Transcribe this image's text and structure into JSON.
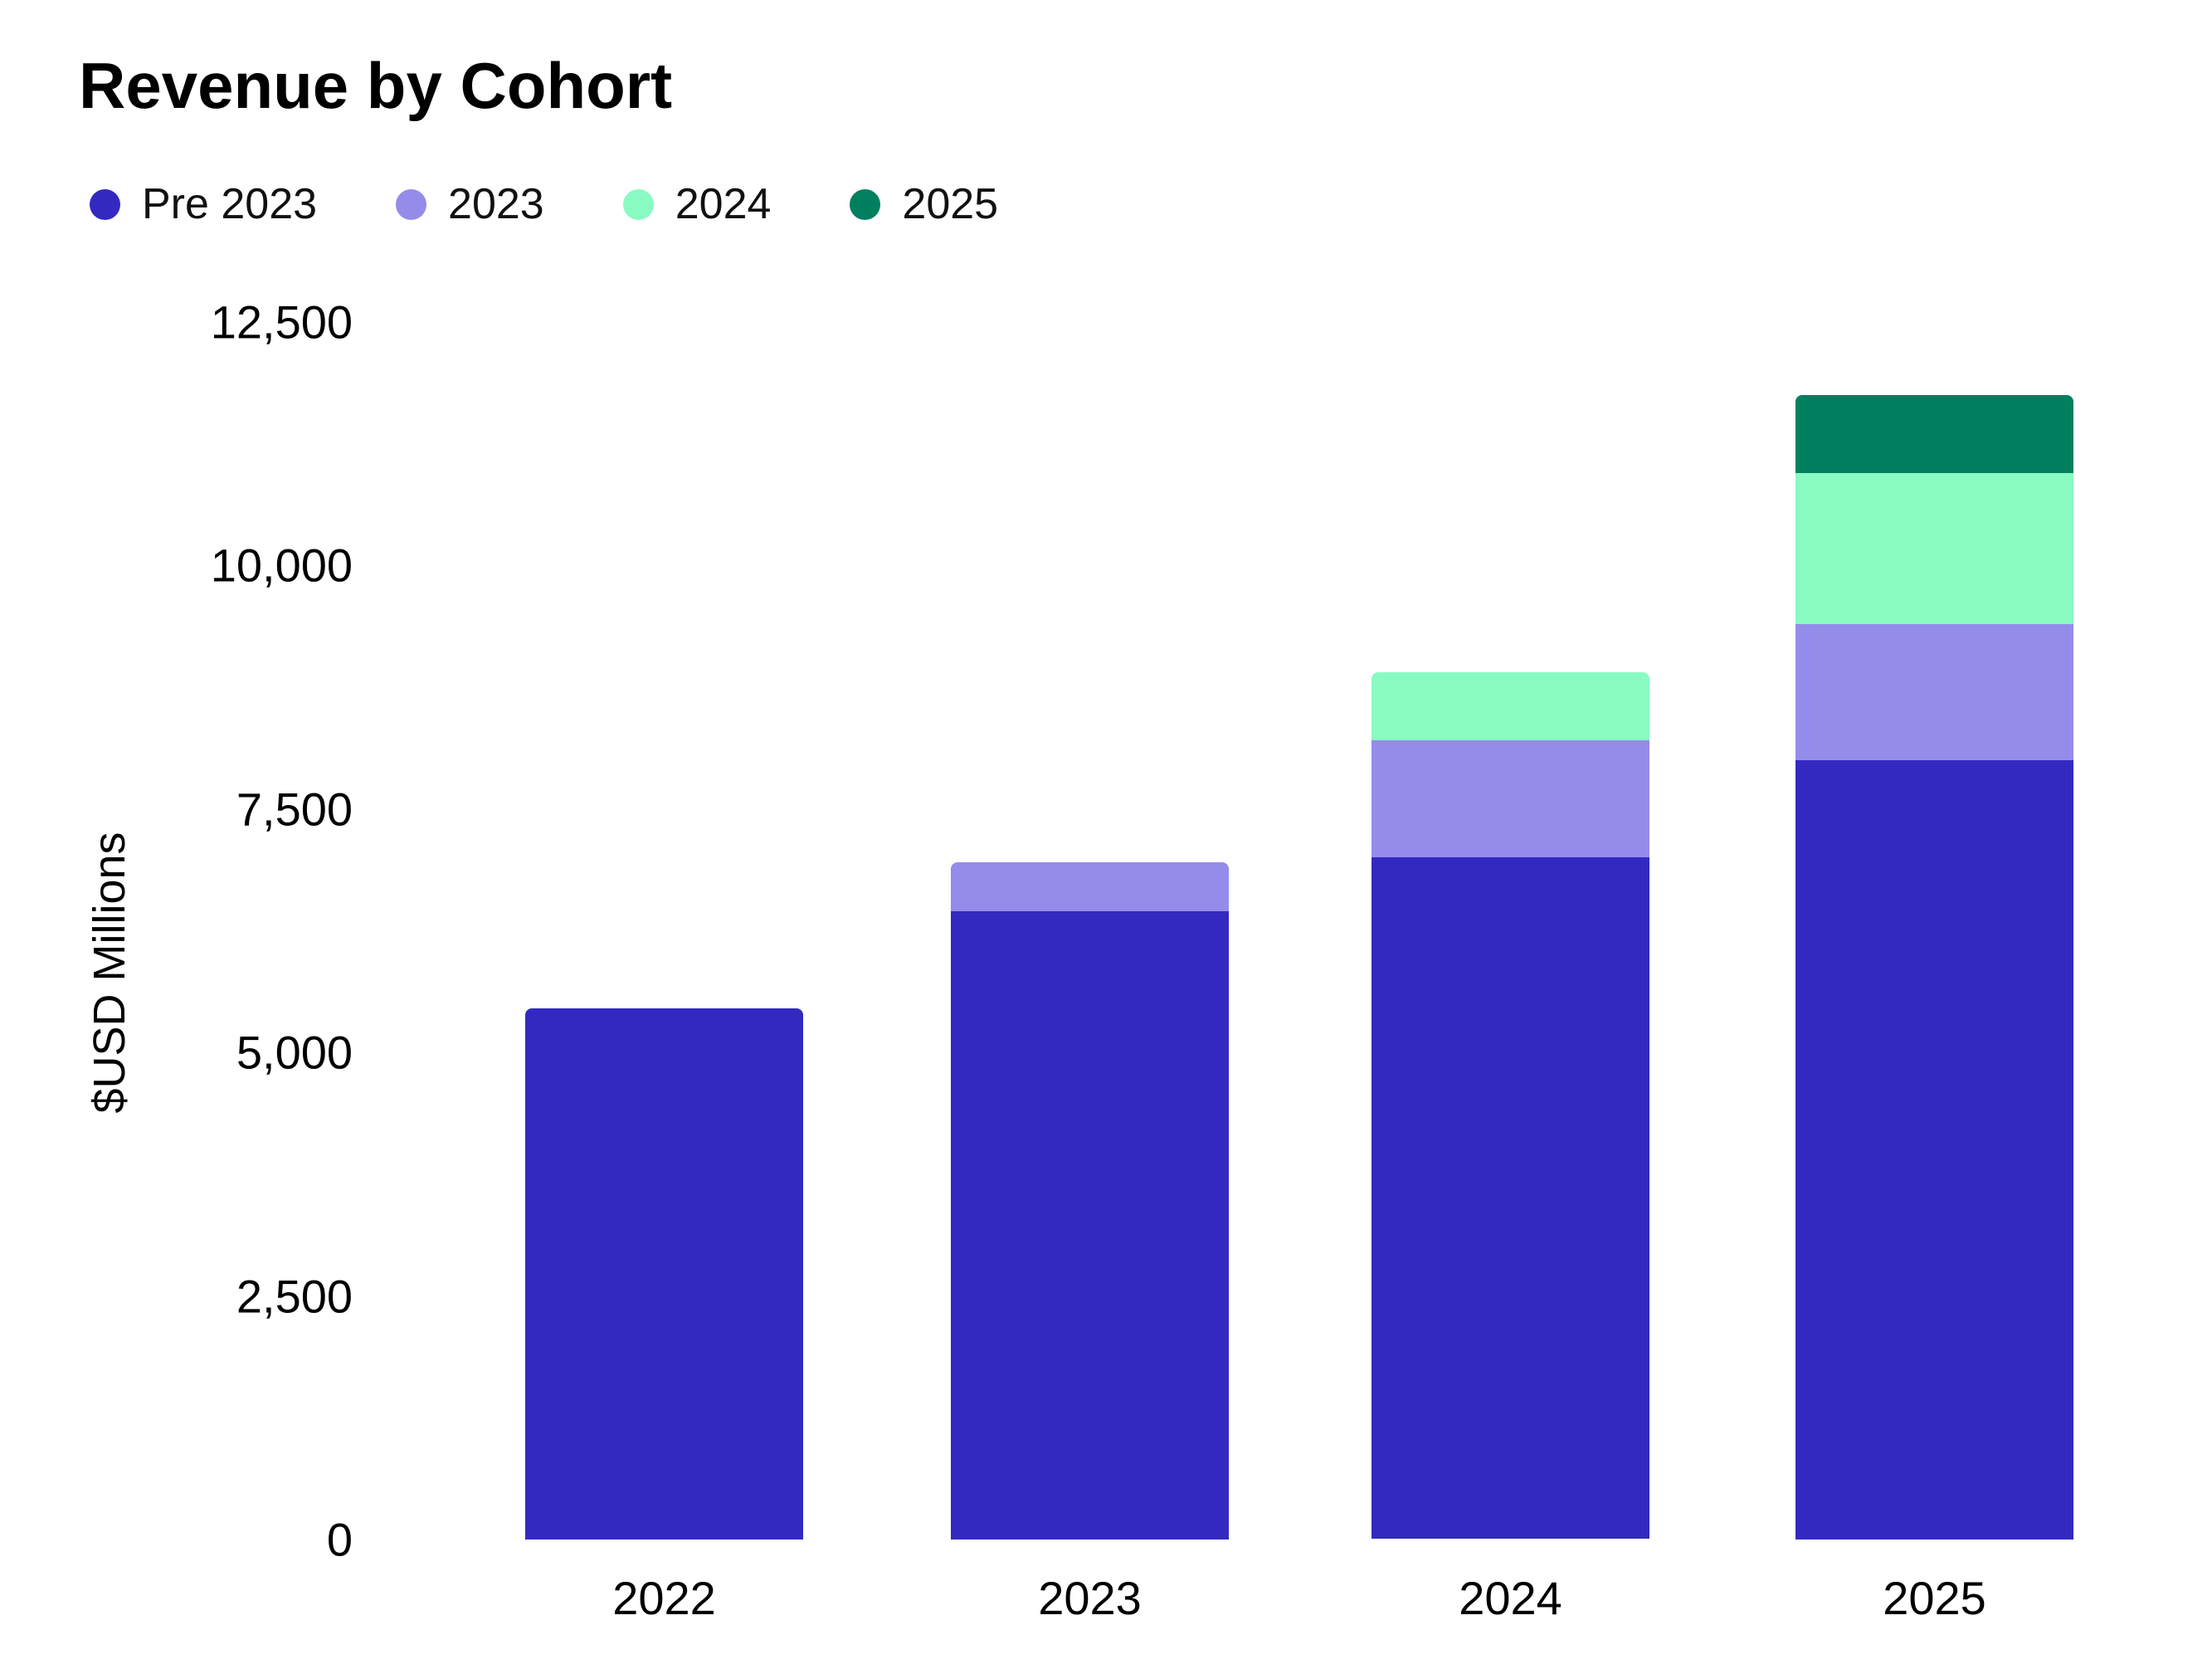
{
  "page": {
    "background": "#ffffff"
  },
  "header": {
    "title": "Revenue by Cohort"
  },
  "legend": {
    "items": [
      {
        "label": "Pre 2023",
        "color": "#3329C0"
      },
      {
        "label": "2023",
        "color": "#958BEB"
      },
      {
        "label": "2024",
        "color": "#8AFAC3"
      },
      {
        "label": "2025",
        "color": "#018060"
      }
    ]
  },
  "chart_data": {
    "type": "bar",
    "stacked": true,
    "title": "Revenue by Cohort",
    "categories": [
      "2022",
      "2023",
      "2024",
      "2025"
    ],
    "series": [
      {
        "name": "Pre 2023",
        "color": "#3329C0",
        "values": [
          5450,
          6450,
          7000,
          8000
        ]
      },
      {
        "name": "2023",
        "color": "#958BEB",
        "values": [
          0,
          500,
          1200,
          1400
        ]
      },
      {
        "name": "2024",
        "color": "#8AFAC3",
        "values": [
          0,
          0,
          700,
          1550
        ]
      },
      {
        "name": "2025",
        "color": "#018060",
        "values": [
          0,
          0,
          0,
          800
        ]
      }
    ],
    "xlabel": "",
    "ylabel": "$USD Millions",
    "ylim": [
      0,
      12500
    ],
    "yticks": [
      {
        "value": 0,
        "label": "0"
      },
      {
        "value": 2500,
        "label": "2,500"
      },
      {
        "value": 5000,
        "label": "5,000"
      },
      {
        "value": 7500,
        "label": "7,500"
      },
      {
        "value": 10000,
        "label": "10,000"
      },
      {
        "value": 12500,
        "label": "12,500"
      }
    ],
    "grid": false,
    "legend_position": "top-left"
  }
}
